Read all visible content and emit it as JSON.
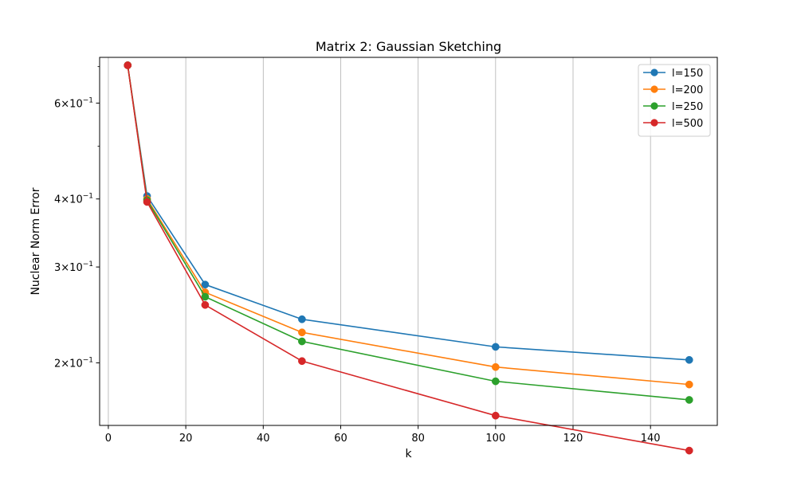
{
  "chart_data": {
    "type": "line",
    "title": "Matrix 2: Gaussian Sketching",
    "xlabel": "k",
    "ylabel": "Nuclear Norm Error",
    "x": [
      5,
      10,
      25,
      50,
      100,
      150
    ],
    "xlim": [
      -2.25,
      157.25
    ],
    "ylim": [
      0.1535,
      0.728
    ],
    "yscale": "log",
    "grid": "x-major",
    "legend_position": "upper-right",
    "x_ticks": [
      {
        "value": 0,
        "label": "0"
      },
      {
        "value": 20,
        "label": "20"
      },
      {
        "value": 40,
        "label": "40"
      },
      {
        "value": 60,
        "label": "60"
      },
      {
        "value": 80,
        "label": "80"
      },
      {
        "value": 100,
        "label": "100"
      },
      {
        "value": 120,
        "label": "120"
      },
      {
        "value": 140,
        "label": "140"
      }
    ],
    "y_major_ticks": [
      {
        "value": 0.2,
        "mantissa": "2",
        "base": "10",
        "exp": "−1"
      },
      {
        "value": 0.3,
        "mantissa": "3",
        "base": "10",
        "exp": "−1"
      },
      {
        "value": 0.4,
        "mantissa": "4",
        "base": "10",
        "exp": "−1"
      },
      {
        "value": 0.6,
        "mantissa": "6",
        "base": "10",
        "exp": "−1"
      }
    ],
    "y_minor_ticks": [
      0.5,
      0.7
    ],
    "series": [
      {
        "name": "l=150",
        "color": "#1f77b4",
        "values": [
          0.704,
          0.405,
          0.2785,
          0.2405,
          0.214,
          0.2025
        ]
      },
      {
        "name": "l=200",
        "color": "#ff7f0e",
        "values": [
          0.704,
          0.4,
          0.2695,
          0.2275,
          0.1965,
          0.1825
        ]
      },
      {
        "name": "l=250",
        "color": "#2ca02c",
        "values": [
          0.704,
          0.398,
          0.2645,
          0.219,
          0.185,
          0.171
        ]
      },
      {
        "name": "l=500",
        "color": "#d62728",
        "values": [
          0.704,
          0.395,
          0.2555,
          0.2015,
          0.16,
          0.138
        ]
      }
    ]
  }
}
